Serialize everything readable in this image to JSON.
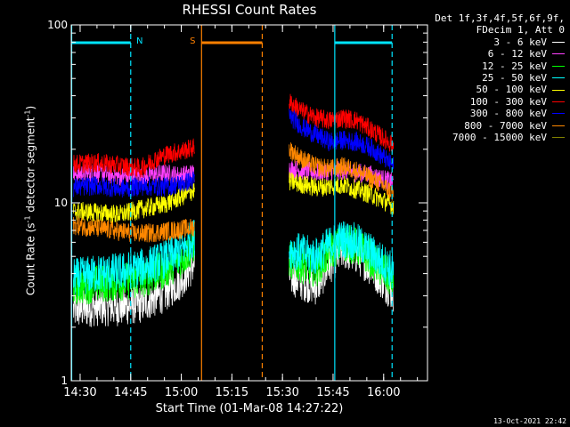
{
  "chart_data": {
    "type": "line",
    "title": "RHESSI Count Rates",
    "xlabel": "Start Time (01-Mar-08 14:27:22)",
    "ylabel_prefix": "Count Rate (s",
    "ylabel_exp1": "-1",
    "ylabel_middle": " detector segment",
    "ylabel_exp2": "-1",
    "ylabel_suffix": ")",
    "yscale": "log",
    "ylim": [
      1,
      100
    ],
    "xlim": [
      "14:27:22",
      "16:13:00"
    ],
    "x_ticks": [
      "14:30",
      "14:45",
      "15:00",
      "15:15",
      "15:30",
      "15:45",
      "16:00"
    ],
    "y_ticks": [
      "1",
      "10",
      "100"
    ],
    "legend_header": [
      "Det 1f,3f,4f,5f,6f,9f,",
      "FDecim 1, Att 0"
    ],
    "legend_position": "outside right",
    "data_gap": [
      "15:05:30",
      "15:31:00"
    ],
    "series": [
      {
        "name": "3 - 6 keV",
        "color": "#ffffff",
        "x": [
          "14:28",
          "14:35",
          "14:42",
          "14:48",
          "14:55",
          "15:00",
          "15:04",
          "15:32",
          "15:36",
          "15:40",
          "15:44",
          "15:48",
          "15:52",
          "15:56",
          "16:00",
          "16:03"
        ],
        "values": [
          2.5,
          2.6,
          2.6,
          2.7,
          3.1,
          3.7,
          4.6,
          3.9,
          3.6,
          3.4,
          4.5,
          5.4,
          5.1,
          4.4,
          3.6,
          3.1
        ]
      },
      {
        "name": "6 - 12 keV",
        "color": "#ff40ff",
        "x": [
          "14:28",
          "14:35",
          "14:42",
          "14:48",
          "14:55",
          "15:00",
          "15:04",
          "15:32",
          "15:40",
          "15:48",
          "15:56",
          "16:03"
        ],
        "values": [
          14.5,
          14.8,
          14.0,
          14.2,
          14.6,
          14.2,
          14.8,
          15.6,
          14.8,
          15.2,
          14.4,
          13.0
        ]
      },
      {
        "name": "12 - 25 keV",
        "color": "#00ff00",
        "x": [
          "14:28",
          "14:35",
          "14:42",
          "14:48",
          "14:55",
          "15:00",
          "15:04",
          "15:32",
          "15:36",
          "15:40",
          "15:44",
          "15:48",
          "15:52",
          "15:56",
          "16:00",
          "16:03"
        ],
        "values": [
          3.4,
          3.5,
          3.6,
          3.7,
          4.2,
          4.8,
          5.9,
          4.8,
          4.5,
          4.3,
          5.3,
          6.0,
          5.7,
          4.9,
          4.1,
          3.6
        ]
      },
      {
        "name": "25 - 50 keV",
        "color": "#00ffff",
        "x": [
          "14:28",
          "14:35",
          "14:42",
          "14:48",
          "14:55",
          "15:00",
          "15:04",
          "15:32",
          "15:36",
          "15:40",
          "15:44",
          "15:48",
          "15:52",
          "15:56",
          "16:00",
          "16:03"
        ],
        "values": [
          3.8,
          4.0,
          4.1,
          4.3,
          4.8,
          5.4,
          6.5,
          5.5,
          5.2,
          5.0,
          5.8,
          6.3,
          6.0,
          5.3,
          4.6,
          4.1
        ]
      },
      {
        "name": "50 - 100 keV",
        "color": "#ffff00",
        "x": [
          "14:28",
          "14:35",
          "14:42",
          "14:48",
          "14:55",
          "15:00",
          "15:04",
          "15:32",
          "15:40",
          "15:48",
          "15:56",
          "16:03"
        ],
        "values": [
          9.0,
          8.8,
          8.6,
          9.2,
          9.8,
          10.8,
          11.8,
          13.2,
          12.2,
          12.6,
          11.2,
          9.6
        ]
      },
      {
        "name": "100 - 300 keV",
        "color": "#ff0000",
        "x": [
          "14:28",
          "14:35",
          "14:42",
          "14:48",
          "14:52",
          "14:56",
          "15:00",
          "15:04",
          "15:32",
          "15:36",
          "15:40",
          "15:44",
          "15:48",
          "15:52",
          "15:56",
          "16:00",
          "16:03"
        ],
        "values": [
          16.5,
          16.8,
          16.2,
          15.6,
          17.5,
          18.8,
          19.5,
          20.5,
          37.0,
          32.5,
          30.0,
          29.0,
          30.0,
          29.0,
          26.0,
          23.0,
          21.0
        ]
      },
      {
        "name": "300 - 800 keV",
        "color": "#0000ff",
        "x": [
          "14:28",
          "14:35",
          "14:42",
          "14:48",
          "14:55",
          "15:00",
          "15:04",
          "15:32",
          "15:36",
          "15:40",
          "15:44",
          "15:48",
          "15:52",
          "15:56",
          "16:00",
          "16:03"
        ],
        "values": [
          12.2,
          12.5,
          12.0,
          12.4,
          12.3,
          12.8,
          13.5,
          31.0,
          26.5,
          24.0,
          22.0,
          22.5,
          22.0,
          20.5,
          18.0,
          16.0
        ]
      },
      {
        "name": "800 - 7000 keV",
        "color": "#ff8800",
        "x": [
          "14:28",
          "14:35",
          "14:42",
          "14:48",
          "14:55",
          "15:00",
          "15:04",
          "15:32",
          "15:36",
          "15:40",
          "15:44",
          "15:48",
          "15:52",
          "15:56",
          "16:00",
          "16:03"
        ],
        "values": [
          7.5,
          7.2,
          6.9,
          6.7,
          6.9,
          7.1,
          7.3,
          20.0,
          17.5,
          16.0,
          15.5,
          16.0,
          15.2,
          13.8,
          12.5,
          11.2
        ]
      },
      {
        "name": "7000 - 15000 keV",
        "color": "#808000",
        "x": [],
        "values": []
      }
    ],
    "markers": [
      {
        "kind": "bar",
        "label": "N",
        "color": "#00e5ff",
        "start": "14:27:30",
        "end": "14:45:00"
      },
      {
        "kind": "bar",
        "label": "",
        "color": "#00e5ff",
        "start": "15:45:30",
        "end": "16:02:30"
      },
      {
        "kind": "bar",
        "label": "S",
        "color": "#ff8000",
        "start": "15:06:00",
        "end": "15:24:00"
      },
      {
        "kind": "vline",
        "color": "#00e5ff",
        "style": "solid",
        "at": "14:27:30"
      },
      {
        "kind": "vline",
        "color": "#00e5ff",
        "style": "dashed",
        "at": "14:45:00"
      },
      {
        "kind": "vline",
        "color": "#ff8000",
        "style": "solid",
        "at": "15:06:00"
      },
      {
        "kind": "vline",
        "color": "#ff8000",
        "style": "dashed",
        "at": "15:24:00"
      },
      {
        "kind": "vline",
        "color": "#00e5ff",
        "style": "solid",
        "at": "15:45:30"
      },
      {
        "kind": "vline",
        "color": "#00e5ff",
        "style": "dashed",
        "at": "16:02:30"
      }
    ]
  },
  "timestamp": "13-Oct-2021 22:42"
}
